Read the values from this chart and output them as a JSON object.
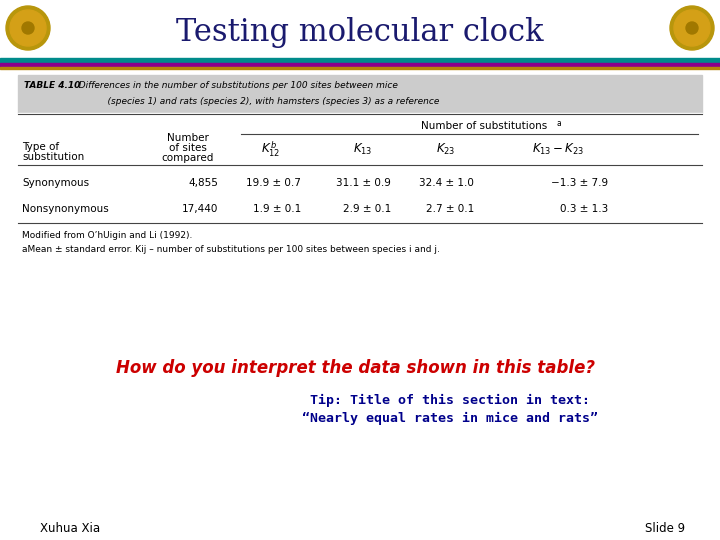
{
  "title": "Testing molecular clock",
  "title_color": "#1a1a6e",
  "bg_color": "#ffffff",
  "stripe1_color": "#008b8b",
  "stripe2_color": "#8b008b",
  "stripe3_color": "#b8860b",
  "table_caption_bold": "TABLE 4.10",
  "table_caption_rest": "  Differences in the number of substitutions per 100 sites between mice",
  "table_caption_line2": "            (species 1) and rats (species 2), with hamsters (species 3) as a reference",
  "super_header": "Number of substitutions",
  "super_header_sup": "a",
  "rows": [
    [
      "Synonymous",
      "4,855",
      "19.9 ± 0.7",
      "31.1 ± 0.9",
      "32.4 ± 1.0",
      "−1.3 ± 7.9"
    ],
    [
      "Nonsynonymous",
      "17,440",
      "1.9 ± 0.1",
      "2.9 ± 0.1",
      "2.7 ± 0.1",
      "0.3 ± 1.3"
    ]
  ],
  "footnote1": "Modified from O’hUigin and Li (1992).",
  "footnote2": "aMean ± standard error. Kij – number of substitutions per 100 sites between species i and j.",
  "question": "How do you interpret the data shown in this table?",
  "question_color": "#cc0000",
  "tip_line1": "Tip: Title of this section in text:",
  "tip_line2": "“Nearly equal rates in mice and rats”",
  "tip_color": "#00008b",
  "author": "Xuhua Xia",
  "slide": "Slide 9",
  "table_bg": "#cccccc",
  "emblem_color": "#c8a000"
}
